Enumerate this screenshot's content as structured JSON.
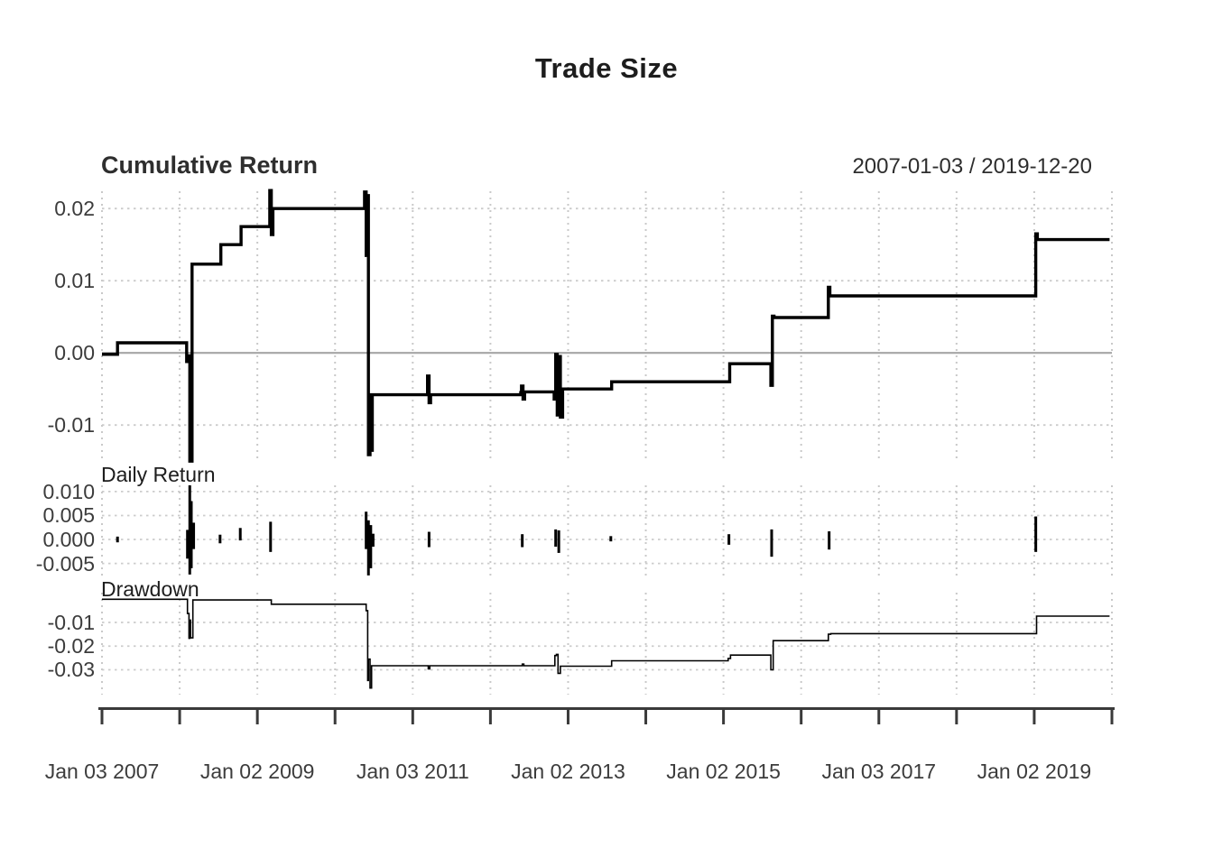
{
  "header": {
    "main_title": "Trade Size",
    "panel1_title": "Cumulative Return",
    "date_range": "2007-01-03 / 2019-12-20",
    "panel2_title": "Daily Return",
    "panel3_title": "Drawdown"
  },
  "colors": {
    "series_line": "#000000",
    "grid": "#c9c9c9",
    "zero_line": "#a6a6a6",
    "axis": "#3a3a3a",
    "text": "#2e2e2e"
  },
  "x_axis": {
    "xlim": [
      2007,
      2020
    ],
    "gridline_years": [
      2007,
      2008,
      2009,
      2010,
      2011,
      2012,
      2013,
      2014,
      2015,
      2016,
      2017,
      2018,
      2019,
      2020
    ],
    "tick_labels": [
      {
        "year": 2007,
        "label": "Jan 03 2007"
      },
      {
        "year": 2009,
        "label": "Jan 02 2009"
      },
      {
        "year": 2011,
        "label": "Jan 03 2011"
      },
      {
        "year": 2013,
        "label": "Jan 02 2013"
      },
      {
        "year": 2015,
        "label": "Jan 02 2015"
      },
      {
        "year": 2017,
        "label": "Jan 03 2017"
      },
      {
        "year": 2019,
        "label": "Jan 02 2019"
      }
    ]
  },
  "chart_data": [
    {
      "type": "line",
      "name": "cumulative_return",
      "title": "Cumulative Return",
      "x_unit": "decimal_year",
      "ylim": [
        -0.0151,
        0.0224
      ],
      "grid": true,
      "yticks": [
        {
          "value": 0.02,
          "label": "0.02"
        },
        {
          "value": 0.01,
          "label": "0.01"
        },
        {
          "value": 0.0,
          "label": "0.00"
        },
        {
          "value": -0.01,
          "label": "-0.01"
        }
      ],
      "points": [
        [
          2007.0,
          -0.0002
        ],
        [
          2007.2,
          0.0014
        ],
        [
          2008.06,
          0.0014
        ],
        [
          2008.09,
          -0.0012
        ],
        [
          2008.11,
          -0.0004
        ],
        [
          2008.13,
          -0.015
        ],
        [
          2008.16,
          0.0123
        ],
        [
          2008.51,
          0.0123
        ],
        [
          2008.53,
          0.015
        ],
        [
          2008.77,
          0.015
        ],
        [
          2008.79,
          0.0175
        ],
        [
          2009.14,
          0.0175
        ],
        [
          2009.16,
          0.0225
        ],
        [
          2009.18,
          0.0164
        ],
        [
          2009.2,
          0.02
        ],
        [
          2010.36,
          0.02
        ],
        [
          2010.38,
          0.0223
        ],
        [
          2010.4,
          0.0135
        ],
        [
          2010.41,
          0.0218
        ],
        [
          2010.43,
          -0.0141
        ],
        [
          2010.45,
          -0.0058
        ],
        [
          2010.46,
          -0.0135
        ],
        [
          2010.48,
          -0.0058
        ],
        [
          2011.18,
          -0.0058
        ],
        [
          2011.19,
          -0.0032
        ],
        [
          2011.21,
          -0.0069
        ],
        [
          2011.23,
          -0.0058
        ],
        [
          2012.39,
          -0.0055
        ],
        [
          2012.4,
          -0.0046
        ],
        [
          2012.42,
          -0.0064
        ],
        [
          2012.44,
          -0.0054
        ],
        [
          2012.8,
          -0.0054
        ],
        [
          2012.82,
          -0.0064
        ],
        [
          2012.84,
          -0.0002
        ],
        [
          2012.86,
          -0.0086
        ],
        [
          2012.88,
          -0.0005
        ],
        [
          2012.9,
          -0.0089
        ],
        [
          2012.93,
          -0.005
        ],
        [
          2013.53,
          -0.005
        ],
        [
          2013.56,
          -0.004
        ],
        [
          2015.04,
          -0.004
        ],
        [
          2015.08,
          -0.0015
        ],
        [
          2015.59,
          -0.0015
        ],
        [
          2015.61,
          -0.0045
        ],
        [
          2015.63,
          0.0051
        ],
        [
          2015.65,
          0.0049
        ],
        [
          2016.33,
          0.0049
        ],
        [
          2016.35,
          0.0091
        ],
        [
          2016.37,
          0.0079
        ],
        [
          2019.0,
          0.0079
        ],
        [
          2019.02,
          0.0165
        ],
        [
          2019.04,
          0.0157
        ],
        [
          2019.97,
          0.0157
        ]
      ]
    },
    {
      "type": "bar",
      "name": "daily_return",
      "title": "Daily Return",
      "x_unit": "decimal_year",
      "ylim": [
        -0.0079,
        0.0113
      ],
      "grid": true,
      "yticks": [
        {
          "value": 0.01,
          "label": "0.010"
        },
        {
          "value": 0.005,
          "label": "0.005"
        },
        {
          "value": 0.0,
          "label": "0.000"
        },
        {
          "value": -0.005,
          "label": "-0.005"
        }
      ],
      "bars": [
        [
          2007.2,
          -0.0006,
          0.0006
        ],
        [
          2008.1,
          -0.004,
          0.002
        ],
        [
          2008.13,
          -0.0073,
          0.0113
        ],
        [
          2008.15,
          -0.006,
          0.008
        ],
        [
          2008.18,
          -0.002,
          0.0035
        ],
        [
          2008.52,
          -0.0008,
          0.001
        ],
        [
          2008.78,
          -0.0002,
          0.0024
        ],
        [
          2009.17,
          -0.0026,
          0.0037
        ],
        [
          2010.4,
          -0.002,
          0.0058
        ],
        [
          2010.43,
          -0.0075,
          0.004
        ],
        [
          2010.46,
          -0.006,
          0.003
        ],
        [
          2010.49,
          -0.0015,
          0.0012
        ],
        [
          2011.21,
          -0.0016,
          0.0016
        ],
        [
          2012.41,
          -0.0016,
          0.0011
        ],
        [
          2012.84,
          -0.0015,
          0.0021
        ],
        [
          2012.88,
          -0.0028,
          0.0019
        ],
        [
          2013.55,
          -0.0004,
          0.0007
        ],
        [
          2015.07,
          -0.0011,
          0.0011
        ],
        [
          2015.62,
          -0.0036,
          0.0021
        ],
        [
          2016.36,
          -0.0021,
          0.0017
        ],
        [
          2019.02,
          -0.0026,
          0.0048
        ]
      ]
    },
    {
      "type": "line",
      "name": "drawdown",
      "title": "Drawdown",
      "x_unit": "decimal_year",
      "ylim": [
        -0.0405,
        0.0026
      ],
      "grid": true,
      "yticks": [
        {
          "value": -0.01,
          "label": "-0.01"
        },
        {
          "value": -0.02,
          "label": "-0.02"
        },
        {
          "value": -0.03,
          "label": "-0.03"
        }
      ],
      "points": [
        [
          2007.0,
          -0.0002
        ],
        [
          2008.08,
          -0.0002
        ],
        [
          2008.1,
          -0.0062
        ],
        [
          2008.12,
          -0.0167
        ],
        [
          2008.13,
          -0.009
        ],
        [
          2008.14,
          -0.0165
        ],
        [
          2008.17,
          -0.0005
        ],
        [
          2009.15,
          -0.0005
        ],
        [
          2009.18,
          -0.0023
        ],
        [
          2010.38,
          -0.0023
        ],
        [
          2010.4,
          -0.005
        ],
        [
          2010.42,
          -0.0345
        ],
        [
          2010.43,
          -0.0255
        ],
        [
          2010.45,
          -0.0377
        ],
        [
          2010.47,
          -0.0283
        ],
        [
          2011.19,
          -0.0283
        ],
        [
          2011.2,
          -0.0296
        ],
        [
          2011.22,
          -0.0283
        ],
        [
          2012.4,
          -0.0283
        ],
        [
          2012.41,
          -0.0276
        ],
        [
          2012.43,
          -0.0283
        ],
        [
          2012.81,
          -0.0283
        ],
        [
          2012.83,
          -0.024
        ],
        [
          2012.85,
          -0.0235
        ],
        [
          2012.87,
          -0.0315
        ],
        [
          2012.9,
          -0.0285
        ],
        [
          2013.54,
          -0.0285
        ],
        [
          2013.56,
          -0.0262
        ],
        [
          2015.04,
          -0.0262
        ],
        [
          2015.06,
          -0.0252
        ],
        [
          2015.09,
          -0.0238
        ],
        [
          2015.59,
          -0.0238
        ],
        [
          2015.61,
          -0.03
        ],
        [
          2015.64,
          -0.0177
        ],
        [
          2016.33,
          -0.0177
        ],
        [
          2016.35,
          -0.015
        ],
        [
          2016.38,
          -0.0147
        ],
        [
          2019.0,
          -0.0147
        ],
        [
          2019.03,
          -0.0073
        ],
        [
          2019.97,
          -0.0073
        ]
      ]
    }
  ]
}
